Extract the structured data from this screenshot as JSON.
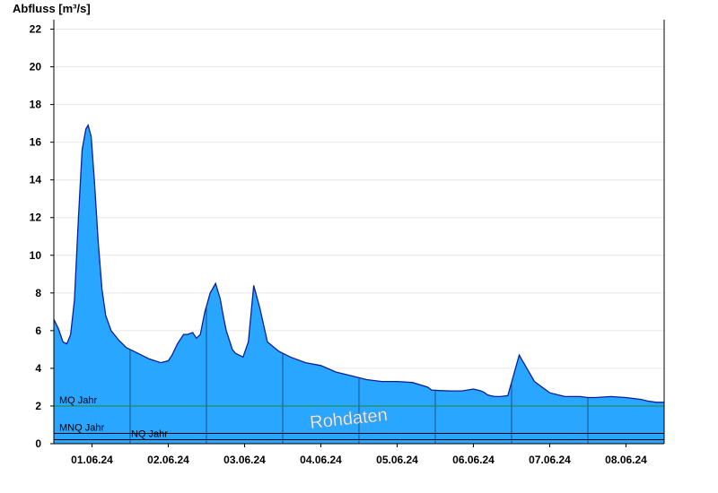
{
  "chart_data": {
    "type": "area",
    "title": "",
    "ylabel": "Abfluss [m³/s]",
    "xlabel": "",
    "ylim": [
      0,
      22.5
    ],
    "yticks": [
      "0",
      "2",
      "4",
      "6",
      "8",
      "10",
      "12",
      "14",
      "16",
      "18",
      "20",
      "22"
    ],
    "xticks": [
      "01.06.24",
      "02.06.24",
      "03.06.24",
      "04.06.24",
      "05.06.24",
      "06.06.24",
      "07.06.24",
      "08.06.24"
    ],
    "x_unit": "day",
    "x_range": [
      31.5,
      39.5
    ],
    "grid": "horizontal",
    "colors": {
      "fill": "#29a6ff",
      "outline": "#0a1f9a",
      "mq_line": "#1a8a3a",
      "nq_line": "#000000"
    },
    "reference_lines": [
      {
        "label": "MQ Jahr",
        "value": 2.0
      },
      {
        "label": "MNQ Jahr",
        "value": 0.55
      },
      {
        "label": "NQ Jahr",
        "value": 0.5
      }
    ],
    "watermark": "Rohdaten",
    "series": [
      {
        "x": [
          31.5,
          31.56,
          31.62,
          31.67,
          31.72,
          31.77,
          31.82,
          31.87,
          31.92,
          31.95,
          31.99,
          32.03,
          32.08,
          32.13,
          32.18,
          32.25,
          32.35,
          32.45,
          32.6,
          32.75,
          32.9,
          33.0,
          33.05,
          33.12,
          33.2,
          33.25,
          33.32,
          33.37,
          33.42,
          33.48,
          33.55,
          33.62,
          33.68,
          33.72,
          33.76,
          33.8,
          33.84,
          33.88,
          33.93,
          33.98,
          34.05,
          34.12,
          34.2,
          34.3,
          34.45,
          34.6,
          34.8,
          35.0,
          35.2,
          35.4,
          35.6,
          35.8,
          35.9,
          36.0,
          36.2,
          36.4,
          36.45,
          36.55,
          36.7,
          36.85,
          37.0,
          37.1,
          37.15,
          37.18,
          37.22,
          37.28,
          37.35,
          37.45,
          37.6,
          37.8,
          38.0,
          38.2,
          38.4,
          38.5,
          38.6,
          38.8,
          39.0,
          39.2,
          39.3,
          39.4,
          39.5
        ],
        "y": [
          6.6,
          6.1,
          5.4,
          5.3,
          5.8,
          7.6,
          11.8,
          15.6,
          16.7,
          16.9,
          16.3,
          14.0,
          10.8,
          8.2,
          6.8,
          6.0,
          5.5,
          5.1,
          4.8,
          4.5,
          4.3,
          4.4,
          4.7,
          5.3,
          5.8,
          5.8,
          5.9,
          5.6,
          5.8,
          7.0,
          8.0,
          8.5,
          7.7,
          6.8,
          6.0,
          5.5,
          5.0,
          4.8,
          4.7,
          4.6,
          5.4,
          8.4,
          7.2,
          5.4,
          4.9,
          4.6,
          4.3,
          4.15,
          3.8,
          3.6,
          3.4,
          3.3,
          3.3,
          3.3,
          3.25,
          3.0,
          2.85,
          2.82,
          2.8,
          2.8,
          2.9,
          2.8,
          2.7,
          2.6,
          2.55,
          2.5,
          2.5,
          2.55,
          4.7,
          3.3,
          2.7,
          2.5,
          2.5,
          2.45,
          2.45,
          2.5,
          2.45,
          2.35,
          2.25,
          2.2,
          2.2
        ]
      }
    ]
  }
}
